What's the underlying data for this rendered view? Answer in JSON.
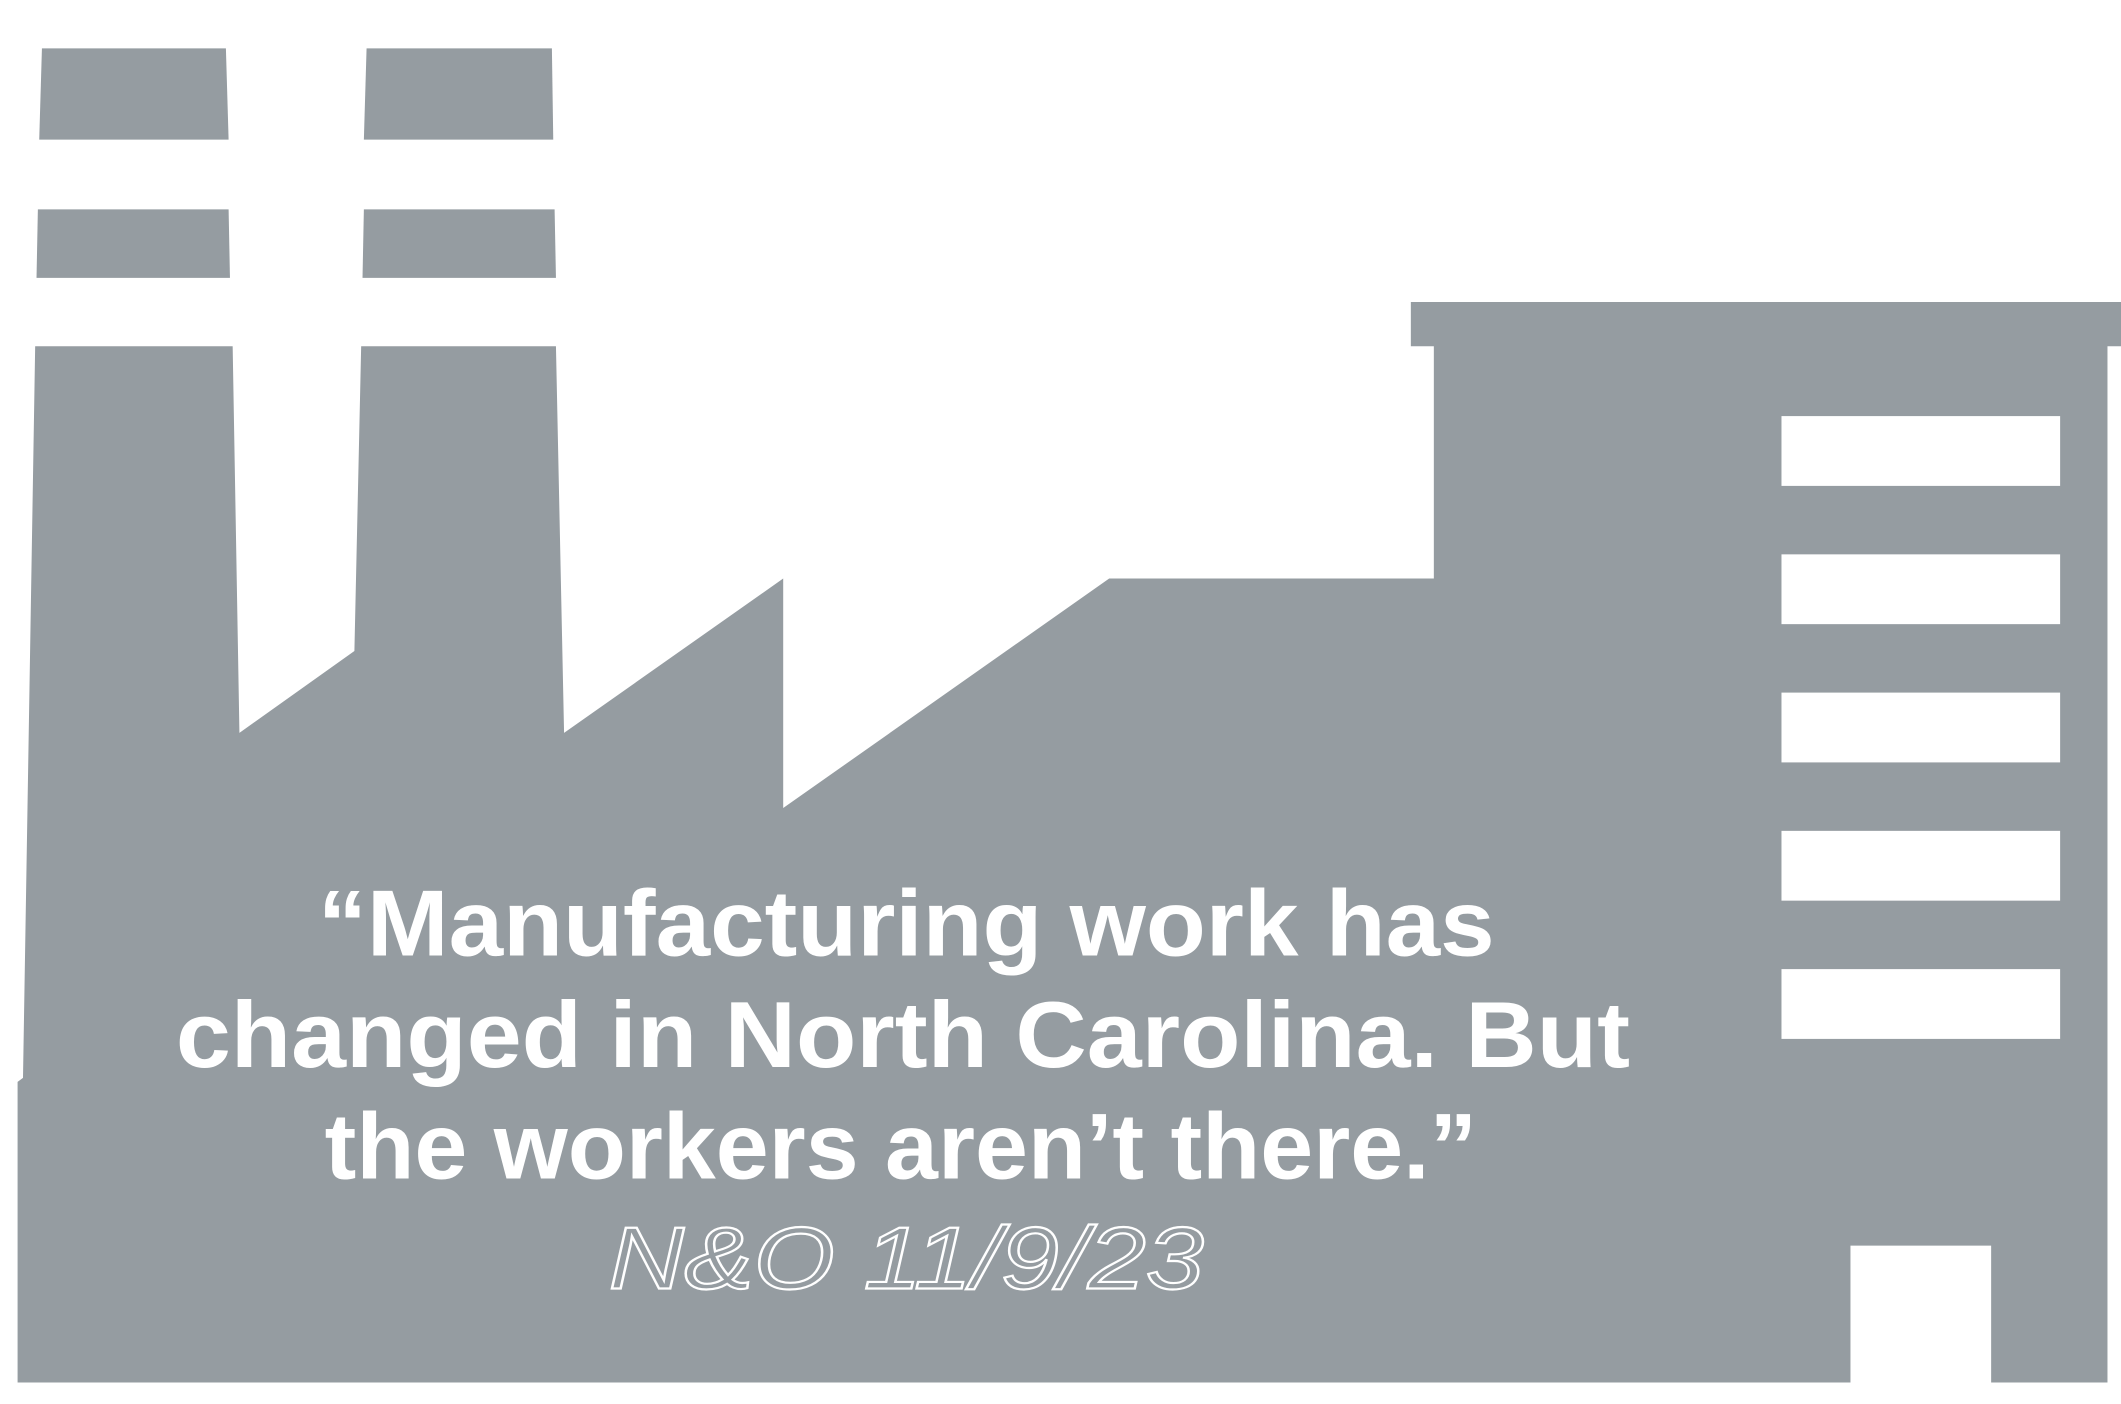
{
  "quote": {
    "lines": [
      "“Manufacturing work has",
      "changed in North Carolina. But",
      "the workers aren’t there.”"
    ],
    "attribution": "N&O 11/9/23"
  }
}
